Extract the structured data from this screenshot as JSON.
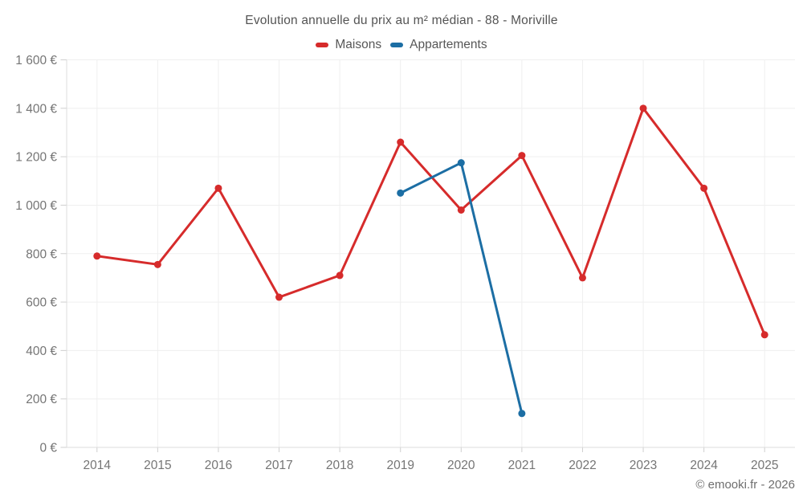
{
  "header": {
    "title": "Evolution annuelle du prix au m² médian - 88 - Moriville"
  },
  "legend": {
    "items": [
      {
        "label": "Maisons",
        "color": "#d62b2b"
      },
      {
        "label": "Appartements",
        "color": "#1c6ea4"
      }
    ]
  },
  "footer": {
    "credit": "© emooki.fr - 2026"
  },
  "chart_data": {
    "type": "line",
    "title": "Evolution annuelle du prix au m² médian - 88 - Moriville",
    "categories": [
      "2014",
      "2015",
      "2016",
      "2017",
      "2018",
      "2019",
      "2020",
      "2021",
      "2022",
      "2023",
      "2024",
      "2025"
    ],
    "series": [
      {
        "name": "Maisons",
        "color": "#d62b2b",
        "values": [
          790,
          755,
          1070,
          620,
          710,
          1260,
          980,
          1205,
          700,
          1400,
          1070,
          465
        ]
      },
      {
        "name": "Appartements",
        "color": "#1c6ea4",
        "values": [
          null,
          null,
          null,
          null,
          null,
          1050,
          1175,
          140,
          null,
          null,
          null,
          null
        ]
      }
    ],
    "ylabel": "",
    "xlabel": "",
    "ylim": [
      0,
      1600
    ],
    "ytick_step": 200,
    "ytick_labels": [
      "0 €",
      "200 €",
      "400 €",
      "600 €",
      "800 €",
      "1 000 €",
      "1 200 €",
      "1 400 €",
      "1 600 €"
    ],
    "currency": "EUR",
    "grid": true,
    "legend_position": "top",
    "colors": {
      "gridline": "#efefef",
      "axis": "#dcdcdc",
      "tick": "#cfcfcf",
      "axis_label": "#757575"
    }
  }
}
